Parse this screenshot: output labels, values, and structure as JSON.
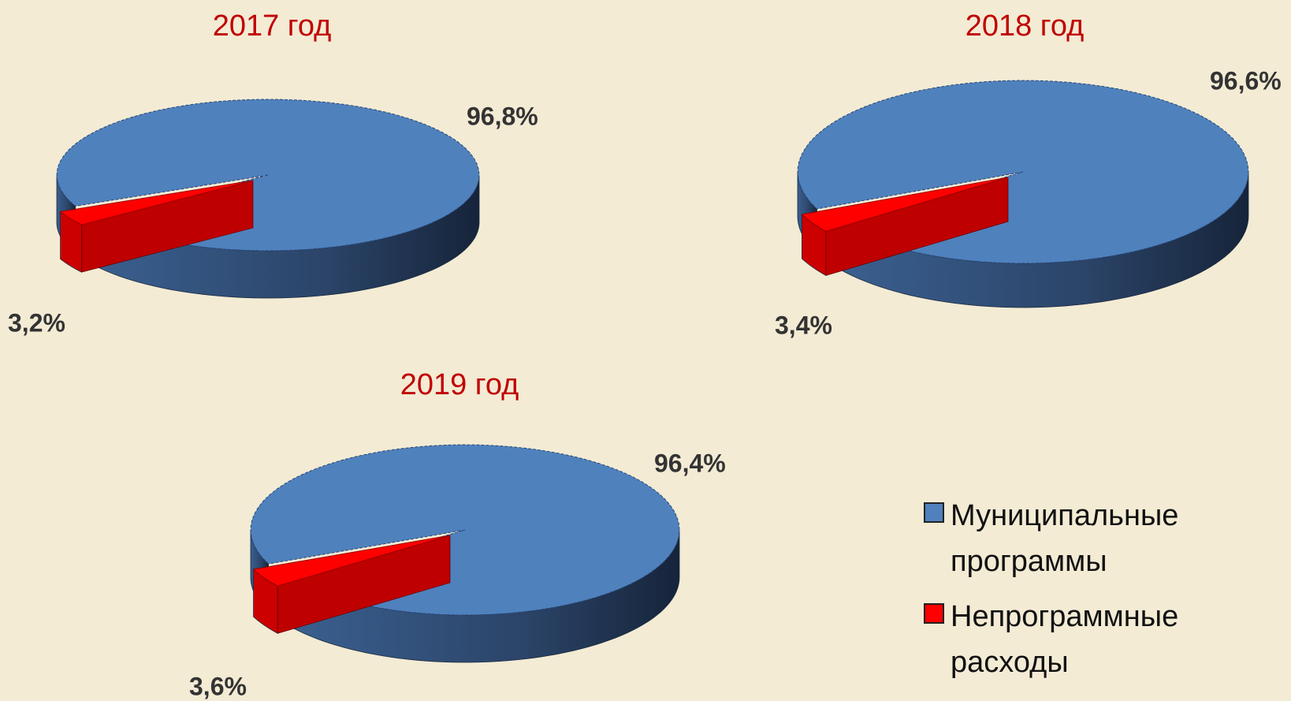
{
  "chart_data": [
    {
      "type": "pie",
      "title": "2017 год",
      "categories": [
        "Муниципальные программы",
        "Непрограммные расходы"
      ],
      "values": [
        96.8,
        3.2
      ],
      "value_labels": [
        "96,8%",
        "3,2%"
      ],
      "colors": [
        "#4f81bd",
        "#ff0000"
      ]
    },
    {
      "type": "pie",
      "title": "2018 год",
      "categories": [
        "Муниципальные программы",
        "Непрограммные расходы"
      ],
      "values": [
        96.6,
        3.4
      ],
      "value_labels": [
        "96,6%",
        "3,4%"
      ],
      "colors": [
        "#4f81bd",
        "#ff0000"
      ]
    },
    {
      "type": "pie",
      "title": "2019 год",
      "categories": [
        "Муниципальные программы",
        "Непрограммные расходы"
      ],
      "values": [
        96.4,
        3.6
      ],
      "value_labels": [
        "96,4%",
        "3,6%"
      ],
      "colors": [
        "#4f81bd",
        "#ff0000"
      ]
    }
  ]
}
